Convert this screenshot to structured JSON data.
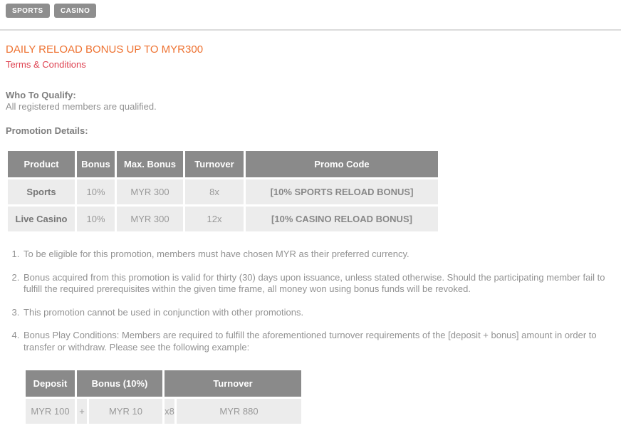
{
  "colors": {
    "accent_orange": "#ee7231",
    "link_red": "#de4150",
    "table_header_gray": "#8a8a8a",
    "table_row_gray": "#ececec",
    "button_gray": "#8e8e8e"
  },
  "tabs": [
    {
      "label": "SPORTS"
    },
    {
      "label": "CASINO"
    }
  ],
  "promo": {
    "title": "DAILY RELOAD BONUS UP TO MYR300",
    "terms_link": "Terms & Conditions",
    "qualify_heading": "Who To Qualify:",
    "qualify_text": "All registered members are qualified.",
    "details_heading": "Promotion Details:"
  },
  "promo_table": {
    "headers": [
      "Product",
      "Bonus",
      "Max. Bonus",
      "Turnover",
      "Promo Code"
    ],
    "rows": [
      {
        "product": "Sports",
        "bonus": "10%",
        "max_bonus": "MYR 300",
        "turnover": "8x",
        "promo_code": "[10% SPORTS RELOAD BONUS]"
      },
      {
        "product": "Live Casino",
        "bonus": "10%",
        "max_bonus": "MYR 300",
        "turnover": "12x",
        "promo_code": "[10% CASINO RELOAD BONUS]"
      }
    ]
  },
  "terms_list": [
    "To be eligible for this promotion, members must have chosen MYR as their preferred currency.",
    "Bonus acquired from this promotion is valid for thirty (30) days upon issuance, unless stated otherwise. Should the participating member fail to fulfill the required prerequisites within the given time frame, all money won using bonus funds will be revoked.",
    "This promotion cannot be used in conjunction with other promotions.",
    "Bonus Play Conditions: Members are required to fulfill the aforementioned turnover requirements of the [deposit + bonus] amount in order to transfer or withdraw. Please see the following example:"
  ],
  "example_table": {
    "headers": [
      "Deposit",
      "Bonus (10%)",
      "Turnover"
    ],
    "row": {
      "deposit": "MYR 100",
      "plus": "+",
      "bonus": "MYR 10",
      "multiplier": "x8",
      "turnover": "MYR 880"
    }
  }
}
